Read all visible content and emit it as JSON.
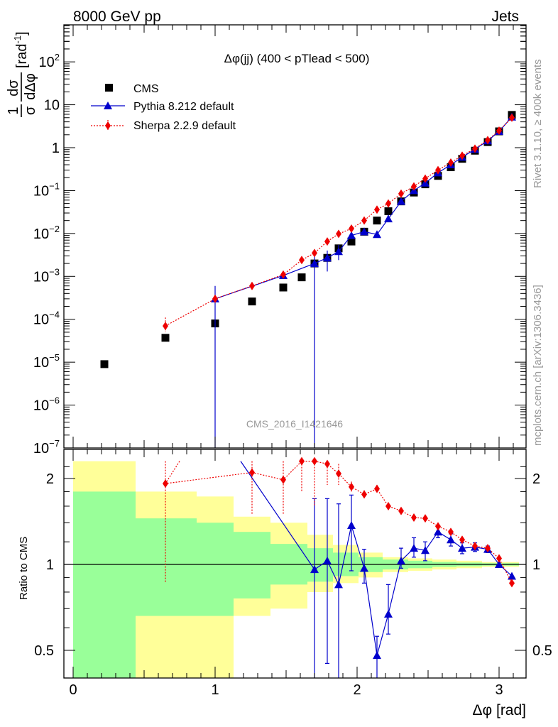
{
  "header": {
    "left_title": "8000 GeV pp",
    "right_title": "Jets",
    "plot_title": "Δφ(jj) (400 < pTlead <  500)",
    "watermark": "CMS_2016_I1421646",
    "side_label_top": "Rivet 3.1.10, ≥ 400k events",
    "side_label_bottom": "mcplots.cern.ch [arXiv:1306.3436]"
  },
  "legend": {
    "cms": "CMS",
    "pythia": "Pythia 8.212 default",
    "sherpa": "Sherpa 2.2.9 default"
  },
  "colors": {
    "cms": "#000000",
    "pythia": "#0000cc",
    "sherpa": "#ee0000",
    "band_inner": "#99ff99",
    "band_outer": "#ffff99"
  },
  "chart_data": [
    {
      "type": "scatter",
      "panel": "main",
      "title": "Δφ(jj) (400 < pTlead <  500)",
      "ylabel_parts": [
        "1",
        "dσ",
        "σ",
        "dΔφ",
        "[rad",
        "-1",
        "]"
      ],
      "yscale": "log",
      "ylim": [
        1e-07,
        700
      ],
      "xlim": [
        -0.06,
        3.2
      ],
      "ytick_labels": [
        {
          "value": 1e-07,
          "base": "10",
          "exp": "−7"
        },
        {
          "value": 1e-06,
          "base": "10",
          "exp": "−6"
        },
        {
          "value": 1e-05,
          "base": "10",
          "exp": "−5"
        },
        {
          "value": 0.0001,
          "base": "10",
          "exp": "−4"
        },
        {
          "value": 0.001,
          "base": "10",
          "exp": "−3"
        },
        {
          "value": 0.01,
          "base": "10",
          "exp": "−2"
        },
        {
          "value": 0.1,
          "base": "10",
          "exp": "−1"
        },
        {
          "value": 1,
          "base": "1",
          "exp": ""
        },
        {
          "value": 10,
          "base": "10",
          "exp": ""
        },
        {
          "value": 100,
          "base": "10",
          "exp": "2"
        }
      ],
      "series": [
        {
          "name": "CMS",
          "marker": "square",
          "points": [
            {
              "x": 0.22,
              "y": 9e-06
            },
            {
              "x": 0.65,
              "y": 3.7e-05
            },
            {
              "x": 1.0,
              "y": 8e-05
            },
            {
              "x": 1.26,
              "y": 0.00026
            },
            {
              "x": 1.48,
              "y": 0.00055
            },
            {
              "x": 1.61,
              "y": 0.00095
            },
            {
              "x": 1.7,
              "y": 0.002
            },
            {
              "x": 1.79,
              "y": 0.0027
            },
            {
              "x": 1.87,
              "y": 0.0045
            },
            {
              "x": 1.96,
              "y": 0.0065
            },
            {
              "x": 2.05,
              "y": 0.011
            },
            {
              "x": 2.14,
              "y": 0.02
            },
            {
              "x": 2.22,
              "y": 0.033
            },
            {
              "x": 2.31,
              "y": 0.056
            },
            {
              "x": 2.4,
              "y": 0.09
            },
            {
              "x": 2.48,
              "y": 0.14
            },
            {
              "x": 2.57,
              "y": 0.22
            },
            {
              "x": 2.66,
              "y": 0.35
            },
            {
              "x": 2.74,
              "y": 0.55
            },
            {
              "x": 2.83,
              "y": 0.85
            },
            {
              "x": 2.92,
              "y": 1.35
            },
            {
              "x": 3.0,
              "y": 2.4
            },
            {
              "x": 3.09,
              "y": 5.8
            }
          ]
        },
        {
          "name": "Pythia 8.212 default",
          "marker": "triangle",
          "points": [
            {
              "x": 1.0,
              "y": 0.0003,
              "ylo": 1e-07,
              "yhi": 0.0006
            },
            {
              "x": 1.48,
              "y": 0.00105
            },
            {
              "x": 1.7,
              "y": 0.002,
              "ylo": 1e-07,
              "yhi": 0.0035
            },
            {
              "x": 1.79,
              "y": 0.0027,
              "ylo": 0.0013,
              "yhi": 0.004
            },
            {
              "x": 1.87,
              "y": 0.0038,
              "ylo": 0.0024,
              "yhi": 0.0054
            },
            {
              "x": 1.96,
              "y": 0.009
            },
            {
              "x": 2.05,
              "y": 0.011
            },
            {
              "x": 2.14,
              "y": 0.0095
            },
            {
              "x": 2.22,
              "y": 0.022
            },
            {
              "x": 2.31,
              "y": 0.056
            },
            {
              "x": 2.4,
              "y": 0.1
            },
            {
              "x": 2.48,
              "y": 0.15
            },
            {
              "x": 2.57,
              "y": 0.26
            },
            {
              "x": 2.66,
              "y": 0.4
            },
            {
              "x": 2.74,
              "y": 0.6
            },
            {
              "x": 2.83,
              "y": 0.92
            },
            {
              "x": 2.92,
              "y": 1.45
            },
            {
              "x": 3.0,
              "y": 2.4
            },
            {
              "x": 3.09,
              "y": 5.2
            }
          ]
        },
        {
          "name": "Sherpa 2.2.9 default",
          "marker": "diamond",
          "points": [
            {
              "x": 0.65,
              "y": 7e-05,
              "ylo": 5e-05,
              "yhi": 0.00011
            },
            {
              "x": 1.0,
              "y": 0.0003
            },
            {
              "x": 1.26,
              "y": 0.0006
            },
            {
              "x": 1.48,
              "y": 0.0011
            },
            {
              "x": 1.61,
              "y": 0.0024
            },
            {
              "x": 1.7,
              "y": 0.0035
            },
            {
              "x": 1.79,
              "y": 0.0065
            },
            {
              "x": 1.87,
              "y": 0.0098
            },
            {
              "x": 1.96,
              "y": 0.013
            },
            {
              "x": 2.05,
              "y": 0.02
            },
            {
              "x": 2.14,
              "y": 0.036
            },
            {
              "x": 2.22,
              "y": 0.05
            },
            {
              "x": 2.31,
              "y": 0.085
            },
            {
              "x": 2.4,
              "y": 0.125
            },
            {
              "x": 2.48,
              "y": 0.19
            },
            {
              "x": 2.57,
              "y": 0.3
            },
            {
              "x": 2.66,
              "y": 0.45
            },
            {
              "x": 2.74,
              "y": 0.65
            },
            {
              "x": 2.83,
              "y": 0.95
            },
            {
              "x": 2.92,
              "y": 1.5
            },
            {
              "x": 3.0,
              "y": 2.5
            },
            {
              "x": 3.09,
              "y": 5.0
            }
          ]
        }
      ]
    },
    {
      "type": "scatter",
      "panel": "ratio",
      "ylabel": "Ratio to CMS",
      "xlabel": "Δφ [rad]",
      "yscale": "log",
      "ylim": [
        0.4,
        2.3
      ],
      "xlim": [
        -0.06,
        3.2
      ],
      "xtick_labels": [
        "0",
        "1",
        "2",
        "3"
      ],
      "xticks": [
        0,
        1,
        2,
        3
      ],
      "ytick_labels": [
        {
          "value": 0.5,
          "label": "0.5"
        },
        {
          "value": 1,
          "label": "1"
        },
        {
          "value": 2,
          "label": "2"
        }
      ],
      "reference": 1,
      "bands": [
        {
          "x0": 0.0,
          "x1": 0.44,
          "inner": [
            0.4,
            1.8
          ],
          "outer": [
            0.4,
            2.3
          ]
        },
        {
          "x0": 0.44,
          "x1": 0.87,
          "inner": [
            0.66,
            1.45
          ],
          "outer": [
            0.4,
            1.8
          ]
        },
        {
          "x0": 0.87,
          "x1": 1.13,
          "inner": [
            0.66,
            1.4
          ],
          "outer": [
            0.4,
            1.73
          ]
        },
        {
          "x0": 1.13,
          "x1": 1.39,
          "inner": [
            0.76,
            1.3
          ],
          "outer": [
            0.66,
            1.47
          ]
        },
        {
          "x0": 1.39,
          "x1": 1.65,
          "inner": [
            0.85,
            1.18
          ],
          "outer": [
            0.7,
            1.4
          ]
        },
        {
          "x0": 1.65,
          "x1": 1.83,
          "inner": [
            0.87,
            1.14
          ],
          "outer": [
            0.8,
            1.27
          ]
        },
        {
          "x0": 1.83,
          "x1": 2.01,
          "inner": [
            0.91,
            1.1
          ],
          "outer": [
            0.86,
            1.17
          ]
        },
        {
          "x0": 2.01,
          "x1": 2.18,
          "inner": [
            0.94,
            1.06
          ],
          "outer": [
            0.9,
            1.1
          ]
        },
        {
          "x0": 2.18,
          "x1": 2.36,
          "inner": [
            0.96,
            1.04
          ],
          "outer": [
            0.94,
            1.06
          ]
        },
        {
          "x0": 2.36,
          "x1": 2.53,
          "inner": [
            0.97,
            1.03
          ],
          "outer": [
            0.95,
            1.05
          ]
        },
        {
          "x0": 2.53,
          "x1": 2.7,
          "inner": [
            0.98,
            1.02
          ],
          "outer": [
            0.96,
            1.04
          ]
        },
        {
          "x0": 2.7,
          "x1": 2.88,
          "inner": [
            0.985,
            1.015
          ],
          "outer": [
            0.97,
            1.03
          ]
        },
        {
          "x0": 2.88,
          "x1": 3.05,
          "inner": [
            0.99,
            1.01
          ],
          "outer": [
            0.98,
            1.02
          ]
        },
        {
          "x0": 3.05,
          "x1": 3.14,
          "inner": [
            0.99,
            1.01
          ],
          "outer": [
            0.98,
            1.02
          ]
        }
      ],
      "series": [
        {
          "name": "Pythia 8.212 default",
          "marker": "triangle",
          "line_from": [
            1.18,
            2.3
          ],
          "points": [
            {
              "x": 1.7,
              "y": 0.96,
              "ylo": 0.4,
              "yhi": 1.7
            },
            {
              "x": 1.79,
              "y": 1.03,
              "ylo": 0.45,
              "yhi": 1.7
            },
            {
              "x": 1.87,
              "y": 0.85,
              "ylo": 0.4,
              "yhi": 1.63
            },
            {
              "x": 1.96,
              "y": 1.37,
              "ylo": 0.95,
              "yhi": 1.75
            },
            {
              "x": 2.05,
              "y": 0.97,
              "ylo": 0.86,
              "yhi": 1.13
            },
            {
              "x": 2.14,
              "y": 0.48,
              "ylo": 0.4,
              "yhi": 0.56
            },
            {
              "x": 2.22,
              "y": 0.67,
              "ylo": 0.57,
              "yhi": 0.85
            },
            {
              "x": 2.31,
              "y": 1.03,
              "ylo": 0.97,
              "yhi": 1.14
            },
            {
              "x": 2.4,
              "y": 1.14,
              "ylo": 1.06,
              "yhi": 1.24
            },
            {
              "x": 2.48,
              "y": 1.12,
              "ylo": 1.03,
              "yhi": 1.2
            },
            {
              "x": 2.57,
              "y": 1.3,
              "ylo": 1.24,
              "yhi": 1.36
            },
            {
              "x": 2.66,
              "y": 1.22,
              "ylo": 1.16,
              "yhi": 1.28
            },
            {
              "x": 2.74,
              "y": 1.14,
              "ylo": 1.09,
              "yhi": 1.19
            },
            {
              "x": 2.83,
              "y": 1.15,
              "ylo": 1.11,
              "yhi": 1.19
            },
            {
              "x": 2.92,
              "y": 1.13,
              "ylo": 1.1,
              "yhi": 1.16
            },
            {
              "x": 3.0,
              "y": 1.0
            },
            {
              "x": 3.09,
              "y": 0.91
            }
          ]
        },
        {
          "name": "Sherpa 2.2.9 default",
          "marker": "diamond",
          "line_from": [
            0.75,
            2.3
          ],
          "points": [
            {
              "x": 0.65,
              "y": 1.92,
              "ylo": 0.86,
              "yhi": 2.3
            },
            {
              "x": 1.26,
              "y": 2.1,
              "ylo": 1.5,
              "yhi": 2.3
            },
            {
              "x": 1.48,
              "y": 1.98,
              "ylo": 1.5,
              "yhi": 2.3
            },
            {
              "x": 1.61,
              "y": 2.3,
              "ylo": 1.8,
              "yhi": 2.3
            },
            {
              "x": 1.7,
              "y": 2.3,
              "ylo": 1.6,
              "yhi": 2.3
            },
            {
              "x": 1.79,
              "y": 2.25,
              "ylo": 1.9,
              "yhi": 2.3
            },
            {
              "x": 1.87,
              "y": 2.08,
              "ylo": 1.9,
              "yhi": 2.25
            },
            {
              "x": 1.96,
              "y": 1.87,
              "ylo": 1.8,
              "yhi": 1.95
            },
            {
              "x": 2.05,
              "y": 1.76,
              "ylo": 1.7,
              "yhi": 1.82
            },
            {
              "x": 2.14,
              "y": 1.84,
              "ylo": 1.78,
              "yhi": 1.9
            },
            {
              "x": 2.22,
              "y": 1.6,
              "ylo": 1.55,
              "yhi": 1.65
            },
            {
              "x": 2.31,
              "y": 1.54,
              "ylo": 1.5,
              "yhi": 1.58
            },
            {
              "x": 2.4,
              "y": 1.46,
              "ylo": 1.43,
              "yhi": 1.49
            },
            {
              "x": 2.48,
              "y": 1.45,
              "ylo": 1.42,
              "yhi": 1.48
            },
            {
              "x": 2.57,
              "y": 1.36,
              "ylo": 1.33,
              "yhi": 1.39
            },
            {
              "x": 2.66,
              "y": 1.3,
              "ylo": 1.27,
              "yhi": 1.33
            },
            {
              "x": 2.74,
              "y": 1.22,
              "ylo": 1.2,
              "yhi": 1.24
            },
            {
              "x": 2.83,
              "y": 1.16,
              "ylo": 1.14,
              "yhi": 1.18
            },
            {
              "x": 2.92,
              "y": 1.14,
              "ylo": 1.12,
              "yhi": 1.16
            },
            {
              "x": 3.0,
              "y": 1.05,
              "ylo": 1.04,
              "yhi": 1.06
            },
            {
              "x": 3.09,
              "y": 0.86
            }
          ]
        }
      ]
    }
  ]
}
